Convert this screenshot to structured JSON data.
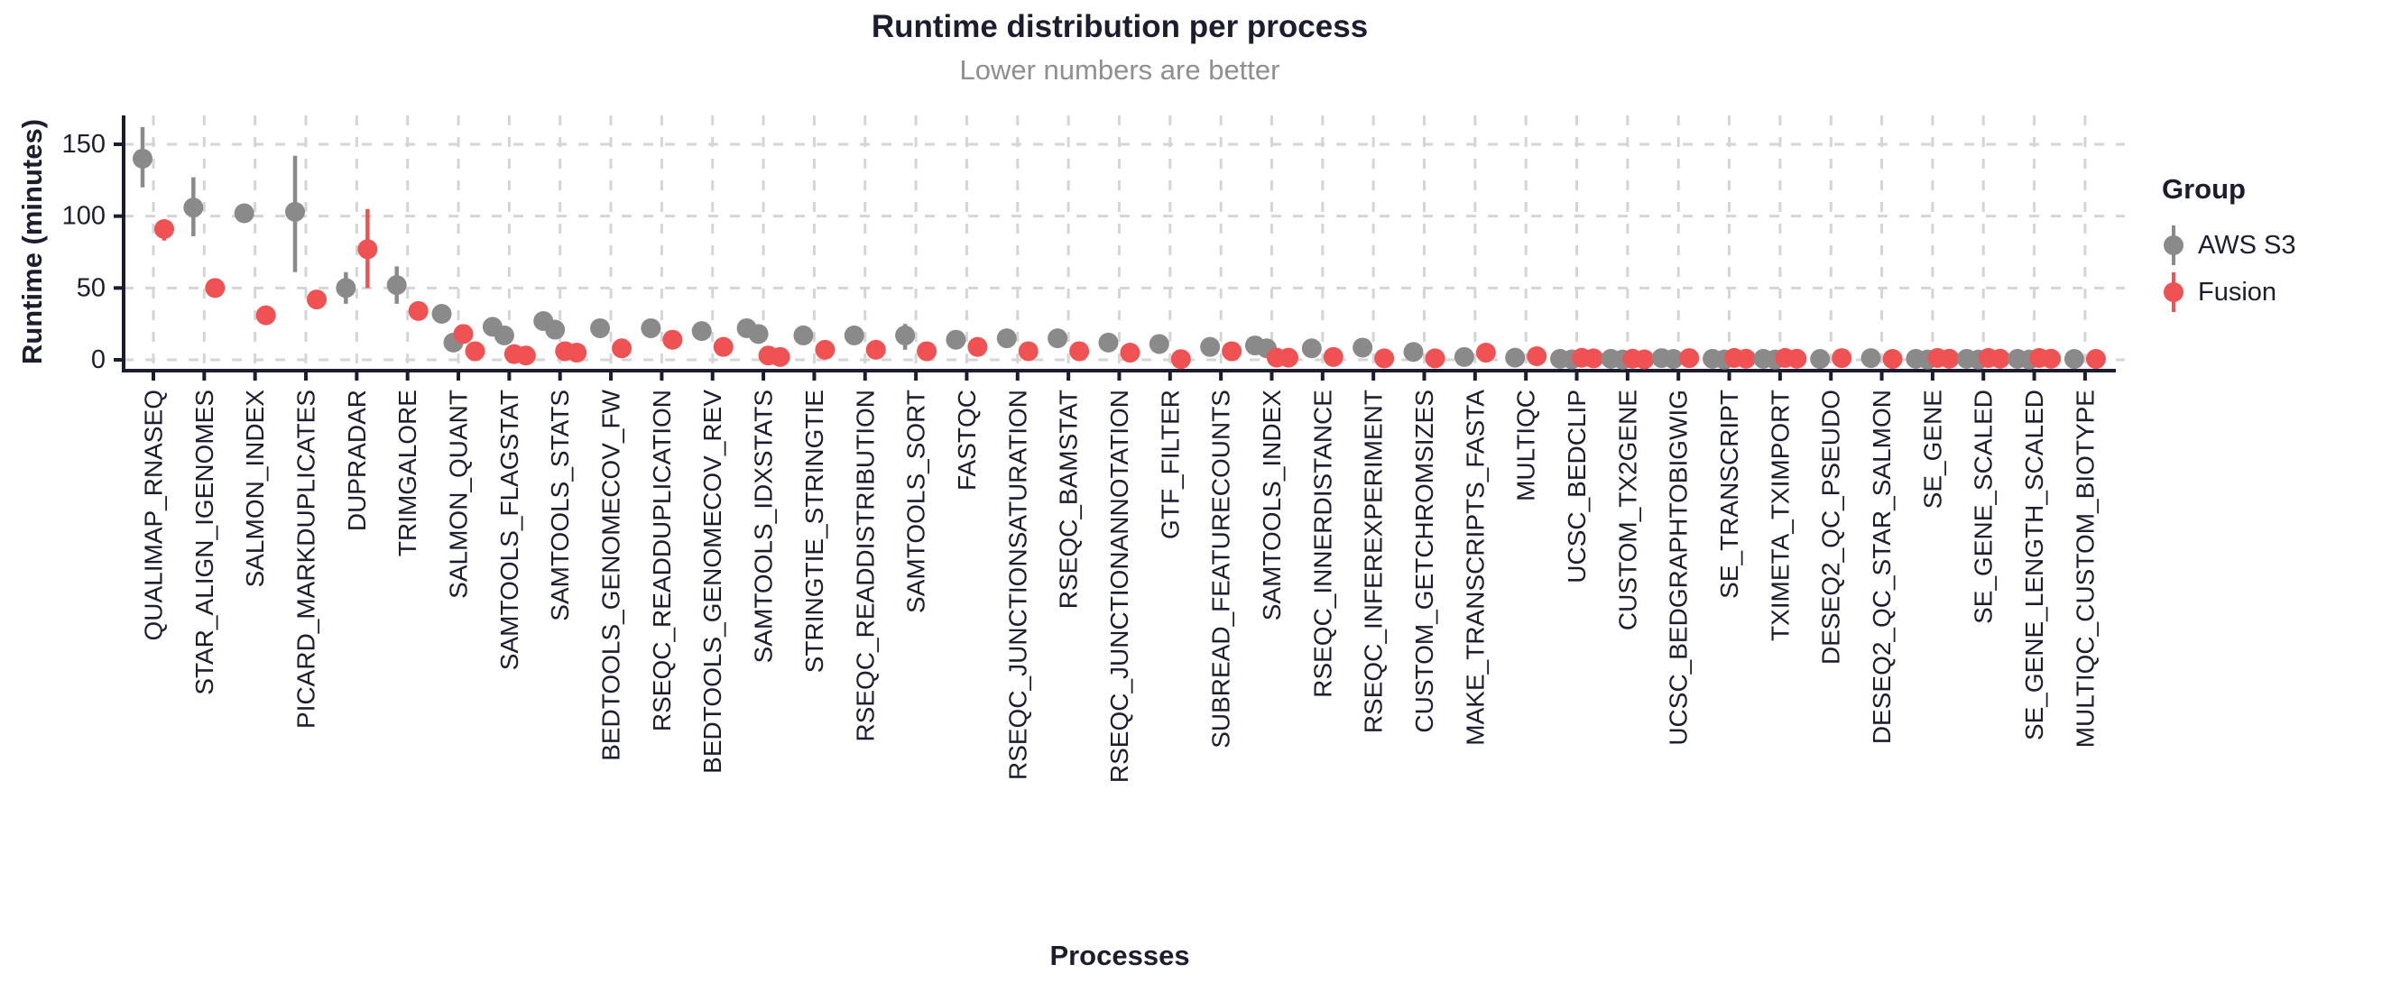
{
  "header": {
    "title": "Runtime distribution per process",
    "subtitle": "Lower numbers are better"
  },
  "axes": {
    "x_title": "Processes",
    "y_title": "Runtime (minutes)"
  },
  "legend": {
    "title": "Group",
    "items": [
      {
        "label": "AWS S3",
        "key": "aws_s3"
      },
      {
        "label": "Fusion",
        "key": "fusion"
      }
    ]
  },
  "colors": {
    "aws_s3": "#8a8a8a",
    "fusion": "#f05152",
    "axis_text": "#1d1d30",
    "axis_line": "#1c1c30",
    "subtitle": "#8f8f8f",
    "grid": "#d5d5d5",
    "background": "#ffffff"
  },
  "chart_data": {
    "type": "scatter",
    "subtype": "pointrange-dodged",
    "title": "Runtime distribution per process",
    "subtitle": "Lower numbers are better",
    "xlabel": "Processes",
    "ylabel": "Runtime (minutes)",
    "ylim": [
      -8,
      170
    ],
    "y_ticks": [
      0,
      50,
      100,
      150
    ],
    "grid": "dashed-both-axes",
    "legend_position": "right",
    "series": [
      "AWS S3",
      "Fusion"
    ],
    "units": "minutes",
    "categories": [
      {
        "name": "QUALIMAP_RNASEQ",
        "aws_s3": {
          "points": [
            140
          ],
          "range": [
            120,
            162
          ]
        },
        "fusion": {
          "points": [
            91
          ],
          "range": [
            83,
            95
          ]
        }
      },
      {
        "name": "STAR_ALIGN_IGENOMES",
        "aws_s3": {
          "points": [
            106
          ],
          "range": [
            86,
            127
          ]
        },
        "fusion": {
          "points": [
            50
          ],
          "range": [
            45,
            55
          ]
        }
      },
      {
        "name": "SALMON_INDEX",
        "aws_s3": {
          "points": [
            102
          ],
          "range": null
        },
        "fusion": {
          "points": [
            31
          ],
          "range": null
        }
      },
      {
        "name": "PICARD_MARKDUPLICATES",
        "aws_s3": {
          "points": [
            103
          ],
          "range": [
            61,
            142
          ]
        },
        "fusion": {
          "points": [
            42
          ],
          "range": null
        }
      },
      {
        "name": "DUPRADAR",
        "aws_s3": {
          "points": [
            50
          ],
          "range": [
            39,
            61
          ]
        },
        "fusion": {
          "points": [
            77
          ],
          "range": [
            50,
            105
          ]
        }
      },
      {
        "name": "TRIMGALORE",
        "aws_s3": {
          "points": [
            52
          ],
          "range": [
            39,
            65
          ]
        },
        "fusion": {
          "points": [
            34
          ],
          "range": null
        }
      },
      {
        "name": "SALMON_QUANT",
        "aws_s3": {
          "points": [
            32,
            12
          ],
          "range": null
        },
        "fusion": {
          "points": [
            18,
            6
          ],
          "range": null
        }
      },
      {
        "name": "SAMTOOLS_FLAGSTAT",
        "aws_s3": {
          "points": [
            23,
            17
          ],
          "range": null
        },
        "fusion": {
          "points": [
            4,
            3
          ],
          "range": null
        }
      },
      {
        "name": "SAMTOOLS_STATS",
        "aws_s3": {
          "points": [
            27,
            21
          ],
          "range": null
        },
        "fusion": {
          "points": [
            6,
            5
          ],
          "range": null
        }
      },
      {
        "name": "BEDTOOLS_GENOMECOV_FW",
        "aws_s3": {
          "points": [
            22
          ],
          "range": null
        },
        "fusion": {
          "points": [
            8
          ],
          "range": null
        }
      },
      {
        "name": "RSEQC_READDUPLICATION",
        "aws_s3": {
          "points": [
            22
          ],
          "range": null
        },
        "fusion": {
          "points": [
            14
          ],
          "range": null
        }
      },
      {
        "name": "BEDTOOLS_GENOMECOV_REV",
        "aws_s3": {
          "points": [
            20
          ],
          "range": null
        },
        "fusion": {
          "points": [
            9
          ],
          "range": null
        }
      },
      {
        "name": "SAMTOOLS_IDXSTATS",
        "aws_s3": {
          "points": [
            22,
            18
          ],
          "range": null
        },
        "fusion": {
          "points": [
            3,
            2
          ],
          "range": null
        }
      },
      {
        "name": "STRINGTIE_STRINGTIE",
        "aws_s3": {
          "points": [
            17
          ],
          "range": null
        },
        "fusion": {
          "points": [
            7
          ],
          "range": null
        }
      },
      {
        "name": "RSEQC_READDISTRIBUTION",
        "aws_s3": {
          "points": [
            17
          ],
          "range": null
        },
        "fusion": {
          "points": [
            7
          ],
          "range": null
        }
      },
      {
        "name": "SAMTOOLS_SORT",
        "aws_s3": {
          "points": [
            17
          ],
          "range": [
            7,
            25
          ]
        },
        "fusion": {
          "points": [
            6
          ],
          "range": null
        }
      },
      {
        "name": "FASTQC",
        "aws_s3": {
          "points": [
            14
          ],
          "range": null
        },
        "fusion": {
          "points": [
            9
          ],
          "range": null
        }
      },
      {
        "name": "RSEQC_JUNCTIONSATURATION",
        "aws_s3": {
          "points": [
            15
          ],
          "range": null
        },
        "fusion": {
          "points": [
            6
          ],
          "range": null
        }
      },
      {
        "name": "RSEQC_BAMSTAT",
        "aws_s3": {
          "points": [
            15
          ],
          "range": null
        },
        "fusion": {
          "points": [
            6
          ],
          "range": null
        }
      },
      {
        "name": "RSEQC_JUNCTIONANNOTATION",
        "aws_s3": {
          "points": [
            12
          ],
          "range": null
        },
        "fusion": {
          "points": [
            5
          ],
          "range": null
        }
      },
      {
        "name": "GTF_FILTER",
        "aws_s3": {
          "points": [
            11
          ],
          "range": null
        },
        "fusion": {
          "points": [
            0.5
          ],
          "range": null
        }
      },
      {
        "name": "SUBREAD_FEATURECOUNTS",
        "aws_s3": {
          "points": [
            9
          ],
          "range": [
            4,
            14
          ]
        },
        "fusion": {
          "points": [
            6
          ],
          "range": null
        }
      },
      {
        "name": "SAMTOOLS_INDEX",
        "aws_s3": {
          "points": [
            10,
            8
          ],
          "range": null
        },
        "fusion": {
          "points": [
            1.5,
            1.5
          ],
          "range": null
        }
      },
      {
        "name": "RSEQC_INNERDISTANCE",
        "aws_s3": {
          "points": [
            8
          ],
          "range": null
        },
        "fusion": {
          "points": [
            2
          ],
          "range": null
        }
      },
      {
        "name": "RSEQC_INFEREXPERIMENT",
        "aws_s3": {
          "points": [
            8.5
          ],
          "range": null
        },
        "fusion": {
          "points": [
            1
          ],
          "range": null
        }
      },
      {
        "name": "CUSTOM_GETCHROMSIZES",
        "aws_s3": {
          "points": [
            5.5
          ],
          "range": null
        },
        "fusion": {
          "points": [
            1
          ],
          "range": null
        }
      },
      {
        "name": "MAKE_TRANSCRIPTS_FASTA",
        "aws_s3": {
          "points": [
            2
          ],
          "range": null
        },
        "fusion": {
          "points": [
            5
          ],
          "range": null
        }
      },
      {
        "name": "MULTIQC",
        "aws_s3": {
          "points": [
            1.5
          ],
          "range": null
        },
        "fusion": {
          "points": [
            2.5
          ],
          "range": null
        }
      },
      {
        "name": "UCSC_BEDCLIP",
        "aws_s3": {
          "points": [
            0.7,
            0.3
          ],
          "range": null
        },
        "fusion": {
          "points": [
            1.4,
            1.0
          ],
          "range": null
        }
      },
      {
        "name": "CUSTOM_TX2GENE",
        "aws_s3": {
          "points": [
            0.7,
            0.2
          ],
          "range": null
        },
        "fusion": {
          "points": [
            0.8,
            0.3
          ],
          "range": null
        }
      },
      {
        "name": "UCSC_BEDGRAPHTOBIGWIG",
        "aws_s3": {
          "points": [
            1.2,
            0.6
          ],
          "range": null
        },
        "fusion": {
          "points": [
            1.2
          ],
          "range": null
        }
      },
      {
        "name": "SE_TRANSCRIPT",
        "aws_s3": {
          "points": [
            0.7,
            0.2
          ],
          "range": null
        },
        "fusion": {
          "points": [
            1.3,
            0.8
          ],
          "range": null
        }
      },
      {
        "name": "TXIMETA_TXIMPORT",
        "aws_s3": {
          "points": [
            0.7,
            0.2
          ],
          "range": null
        },
        "fusion": {
          "points": [
            1.3,
            0.8
          ],
          "range": null
        }
      },
      {
        "name": "DESEQ2_QC_PSEUDO",
        "aws_s3": {
          "points": [
            0.6
          ],
          "range": null
        },
        "fusion": {
          "points": [
            1.2
          ],
          "range": null
        }
      },
      {
        "name": "DESEQ2_QC_STAR_SALMON",
        "aws_s3": {
          "points": [
            1.2
          ],
          "range": null
        },
        "fusion": {
          "points": [
            0.6
          ],
          "range": null
        }
      },
      {
        "name": "SE_GENE",
        "aws_s3": {
          "points": [
            0.7,
            0.2
          ],
          "range": null
        },
        "fusion": {
          "points": [
            1.3,
            0.8
          ],
          "range": null
        }
      },
      {
        "name": "SE_GENE_SCALED",
        "aws_s3": {
          "points": [
            0.7,
            0.2
          ],
          "range": null
        },
        "fusion": {
          "points": [
            1.3,
            0.8
          ],
          "range": null
        }
      },
      {
        "name": "SE_GENE_LENGTH_SCALED",
        "aws_s3": {
          "points": [
            0.7,
            0.2
          ],
          "range": null
        },
        "fusion": {
          "points": [
            1.3,
            0.8
          ],
          "range": null
        }
      },
      {
        "name": "MULTIQC_CUSTOM_BIOTYPE",
        "aws_s3": {
          "points": [
            0.6
          ],
          "range": null
        },
        "fusion": {
          "points": [
            0.6
          ],
          "range": null
        }
      }
    ]
  }
}
